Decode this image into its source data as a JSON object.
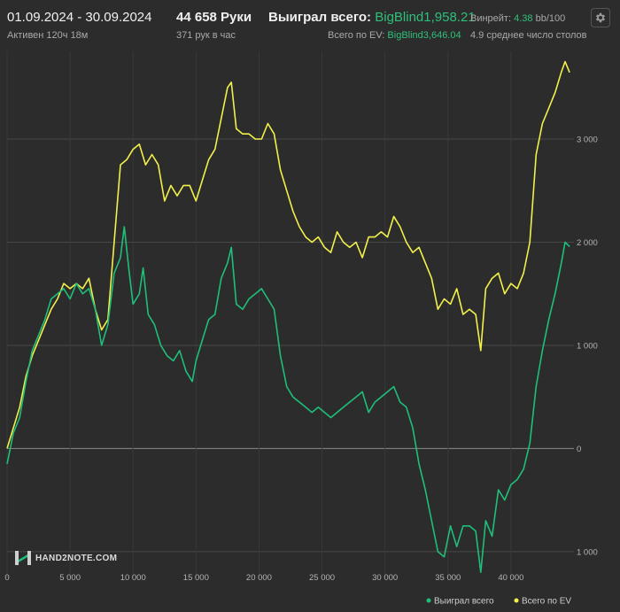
{
  "header": {
    "date_range": "01.09.2024 - 30.09.2024",
    "active_time": "Активен 120ч 18м",
    "hands": "44 658 Руки",
    "hands_per_hour": "371 рук в час",
    "won_label": "Выиграл всего:",
    "won_value": "BigBlind1,958.21",
    "ev_label": "Всего по EV:",
    "ev_value": "BigBlind3,646.04",
    "winrate_label": "Винрейт:",
    "winrate_value": "4.38",
    "winrate_ratio": "bb/100",
    "avg_label": "4.9 среднее число столов"
  },
  "logo": {
    "text": "HAND2NOTE.COM",
    "icon": "hand2note-logo-icon"
  },
  "settings_icon": "gear-icon",
  "colors": {
    "won": "#1fbf7a",
    "ev": "#f2f04a",
    "background": "#2c2c2c",
    "grid": "#444444"
  },
  "chart_data": {
    "type": "line",
    "title": "",
    "xlabel": "",
    "ylabel": "",
    "x_range": [
      0,
      44658
    ],
    "xlim": [
      0,
      45000
    ],
    "ylim": [
      -1250,
      3850
    ],
    "x_ticks": [
      0,
      5000,
      10000,
      15000,
      20000,
      25000,
      30000,
      35000,
      40000
    ],
    "x_tick_labels": [
      "0",
      "5 000",
      "10 000",
      "15 000",
      "20 000",
      "25 000",
      "30 000",
      "35 000",
      "40 000"
    ],
    "y_ticks": [
      3000,
      2000,
      1000,
      0,
      -1000
    ],
    "y_tick_labels": [
      "3 000",
      "2 000",
      "1 000",
      "0",
      "1 000"
    ],
    "grid": true,
    "legend_position": "bottom-right",
    "series": [
      {
        "name": "Выиграл всего",
        "color": "#1fbf7a",
        "points": [
          [
            0,
            -150
          ],
          [
            500,
            150
          ],
          [
            1000,
            300
          ],
          [
            1500,
            650
          ],
          [
            2000,
            950
          ],
          [
            2500,
            1100
          ],
          [
            3000,
            1250
          ],
          [
            3500,
            1450
          ],
          [
            4000,
            1500
          ],
          [
            4500,
            1550
          ],
          [
            5000,
            1450
          ],
          [
            5500,
            1600
          ],
          [
            6000,
            1500
          ],
          [
            6500,
            1550
          ],
          [
            7000,
            1350
          ],
          [
            7500,
            1000
          ],
          [
            8000,
            1200
          ],
          [
            8500,
            1700
          ],
          [
            9000,
            1850
          ],
          [
            9300,
            2150
          ],
          [
            9700,
            1700
          ],
          [
            10000,
            1400
          ],
          [
            10500,
            1500
          ],
          [
            10800,
            1750
          ],
          [
            11200,
            1300
          ],
          [
            11700,
            1200
          ],
          [
            12200,
            1000
          ],
          [
            12700,
            900
          ],
          [
            13200,
            850
          ],
          [
            13700,
            950
          ],
          [
            14200,
            750
          ],
          [
            14700,
            650
          ],
          [
            15000,
            850
          ],
          [
            15500,
            1050
          ],
          [
            16000,
            1250
          ],
          [
            16500,
            1300
          ],
          [
            17000,
            1650
          ],
          [
            17500,
            1800
          ],
          [
            17800,
            1950
          ],
          [
            18200,
            1400
          ],
          [
            18700,
            1350
          ],
          [
            19200,
            1450
          ],
          [
            19700,
            1500
          ],
          [
            20200,
            1550
          ],
          [
            20700,
            1450
          ],
          [
            21200,
            1350
          ],
          [
            21700,
            900
          ],
          [
            22200,
            600
          ],
          [
            22700,
            500
          ],
          [
            23200,
            450
          ],
          [
            23700,
            400
          ],
          [
            24200,
            350
          ],
          [
            24700,
            400
          ],
          [
            25200,
            350
          ],
          [
            25700,
            300
          ],
          [
            26200,
            350
          ],
          [
            26700,
            400
          ],
          [
            27200,
            450
          ],
          [
            27700,
            500
          ],
          [
            28200,
            550
          ],
          [
            28700,
            350
          ],
          [
            29200,
            450
          ],
          [
            29700,
            500
          ],
          [
            30200,
            550
          ],
          [
            30700,
            600
          ],
          [
            31200,
            450
          ],
          [
            31700,
            400
          ],
          [
            32200,
            200
          ],
          [
            32700,
            -150
          ],
          [
            33200,
            -400
          ],
          [
            33700,
            -700
          ],
          [
            34200,
            -1000
          ],
          [
            34700,
            -1050
          ],
          [
            35200,
            -750
          ],
          [
            35700,
            -950
          ],
          [
            36200,
            -750
          ],
          [
            36700,
            -750
          ],
          [
            37200,
            -800
          ],
          [
            37600,
            -1200
          ],
          [
            38000,
            -700
          ],
          [
            38500,
            -850
          ],
          [
            39000,
            -400
          ],
          [
            39500,
            -500
          ],
          [
            40000,
            -350
          ],
          [
            40500,
            -300
          ],
          [
            41000,
            -200
          ],
          [
            41500,
            50
          ],
          [
            42000,
            600
          ],
          [
            42500,
            950
          ],
          [
            43000,
            1250
          ],
          [
            43500,
            1500
          ],
          [
            44000,
            1800
          ],
          [
            44300,
            2000
          ],
          [
            44658,
            1958
          ]
        ]
      },
      {
        "name": "Всего по EV",
        "color": "#f2f04a",
        "points": [
          [
            0,
            0
          ],
          [
            500,
            200
          ],
          [
            1000,
            400
          ],
          [
            1500,
            700
          ],
          [
            2000,
            900
          ],
          [
            2500,
            1050
          ],
          [
            3000,
            1200
          ],
          [
            3500,
            1350
          ],
          [
            4000,
            1450
          ],
          [
            4500,
            1600
          ],
          [
            5000,
            1550
          ],
          [
            5500,
            1600
          ],
          [
            6000,
            1550
          ],
          [
            6500,
            1650
          ],
          [
            7000,
            1350
          ],
          [
            7500,
            1150
          ],
          [
            8000,
            1250
          ],
          [
            8500,
            2000
          ],
          [
            9000,
            2750
          ],
          [
            9500,
            2800
          ],
          [
            10000,
            2900
          ],
          [
            10500,
            2950
          ],
          [
            11000,
            2750
          ],
          [
            11500,
            2850
          ],
          [
            12000,
            2750
          ],
          [
            12500,
            2400
          ],
          [
            13000,
            2550
          ],
          [
            13500,
            2450
          ],
          [
            14000,
            2550
          ],
          [
            14500,
            2550
          ],
          [
            15000,
            2400
          ],
          [
            15500,
            2600
          ],
          [
            16000,
            2800
          ],
          [
            16500,
            2900
          ],
          [
            17000,
            3200
          ],
          [
            17500,
            3500
          ],
          [
            17800,
            3550
          ],
          [
            18200,
            3100
          ],
          [
            18700,
            3050
          ],
          [
            19200,
            3050
          ],
          [
            19700,
            3000
          ],
          [
            20200,
            3000
          ],
          [
            20700,
            3150
          ],
          [
            21200,
            3050
          ],
          [
            21700,
            2700
          ],
          [
            22200,
            2500
          ],
          [
            22700,
            2300
          ],
          [
            23200,
            2150
          ],
          [
            23700,
            2050
          ],
          [
            24200,
            2000
          ],
          [
            24700,
            2050
          ],
          [
            25200,
            1950
          ],
          [
            25700,
            1900
          ],
          [
            26200,
            2100
          ],
          [
            26700,
            2000
          ],
          [
            27200,
            1950
          ],
          [
            27700,
            2000
          ],
          [
            28200,
            1850
          ],
          [
            28700,
            2050
          ],
          [
            29200,
            2050
          ],
          [
            29700,
            2100
          ],
          [
            30200,
            2050
          ],
          [
            30700,
            2250
          ],
          [
            31200,
            2150
          ],
          [
            31700,
            2000
          ],
          [
            32200,
            1900
          ],
          [
            32700,
            1950
          ],
          [
            33200,
            1800
          ],
          [
            33700,
            1650
          ],
          [
            34200,
            1350
          ],
          [
            34700,
            1450
          ],
          [
            35200,
            1400
          ],
          [
            35700,
            1550
          ],
          [
            36200,
            1300
          ],
          [
            36700,
            1350
          ],
          [
            37200,
            1300
          ],
          [
            37600,
            950
          ],
          [
            38000,
            1550
          ],
          [
            38500,
            1650
          ],
          [
            39000,
            1700
          ],
          [
            39500,
            1500
          ],
          [
            40000,
            1600
          ],
          [
            40500,
            1550
          ],
          [
            41000,
            1700
          ],
          [
            41500,
            2000
          ],
          [
            42000,
            2850
          ],
          [
            42500,
            3150
          ],
          [
            43000,
            3300
          ],
          [
            43500,
            3450
          ],
          [
            44000,
            3650
          ],
          [
            44300,
            3750
          ],
          [
            44658,
            3646
          ]
        ]
      }
    ]
  }
}
